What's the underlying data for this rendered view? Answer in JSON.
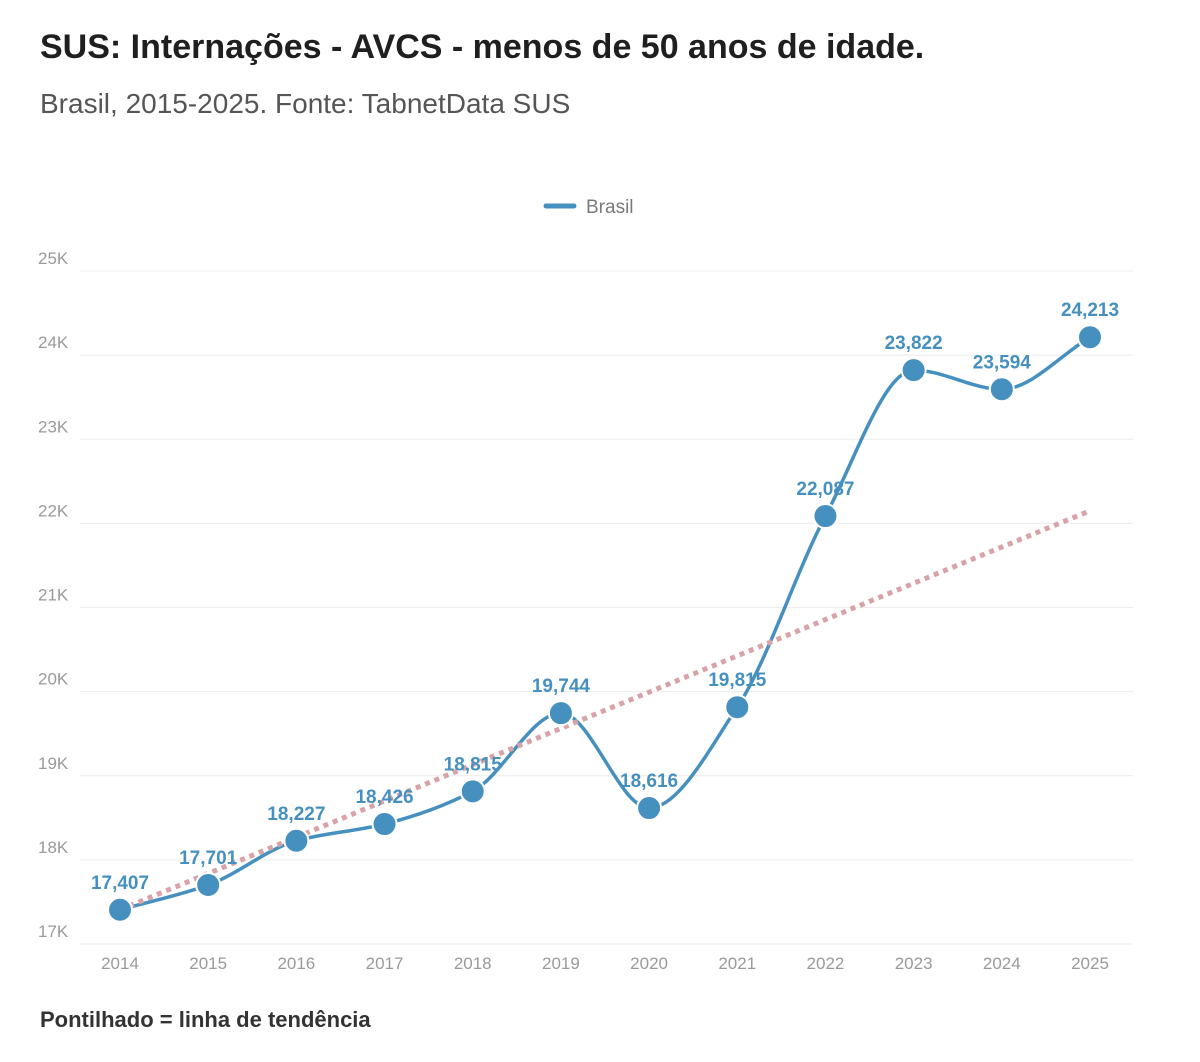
{
  "header": {
    "title": "SUS: Internações - AVCS - menos de 50 anos de idade.",
    "subtitle": "Brasil, 2015-2025. Fonte: TabnetData SUS"
  },
  "footnote": "Pontilhado = linha de tendência",
  "colors": {
    "series": "#4690c0",
    "trend": "#d8a3a8",
    "grid": "#ececec",
    "axis_text": "#9a9a9a"
  },
  "chart_data": {
    "type": "line",
    "title": "SUS: Internações - AVCS - menos de 50 anos de idade.",
    "subtitle": "Brasil, 2015-2025. Fonte: TabnetData SUS",
    "xlabel": "",
    "ylabel": "",
    "categories": [
      "2014",
      "2015",
      "2016",
      "2017",
      "2018",
      "2019",
      "2020",
      "2021",
      "2022",
      "2023",
      "2024",
      "2025"
    ],
    "series": [
      {
        "name": "Brasil",
        "values": [
          17407,
          17701,
          18227,
          18426,
          18815,
          19744,
          18616,
          19815,
          22087,
          23822,
          23594,
          24213
        ],
        "labels": [
          "17,407",
          "17,701",
          "18,227",
          "18,426",
          "18,815",
          "19,744",
          "18,616",
          "19,815",
          "22,087",
          "23,822",
          "23,594",
          "24,213"
        ]
      }
    ],
    "trendline": {
      "style": "dotted",
      "start": 17407,
      "end": 22150
    },
    "ylim": [
      17000,
      25000
    ],
    "yticks": [
      17000,
      18000,
      19000,
      20000,
      21000,
      22000,
      23000,
      24000,
      25000
    ],
    "ytick_labels": [
      "17K",
      "18K",
      "19K",
      "20K",
      "21K",
      "22K",
      "23K",
      "24K",
      "25K"
    ],
    "grid": true,
    "legend": {
      "position": "top-center",
      "entries": [
        "Brasil"
      ]
    },
    "curve": "smooth"
  }
}
